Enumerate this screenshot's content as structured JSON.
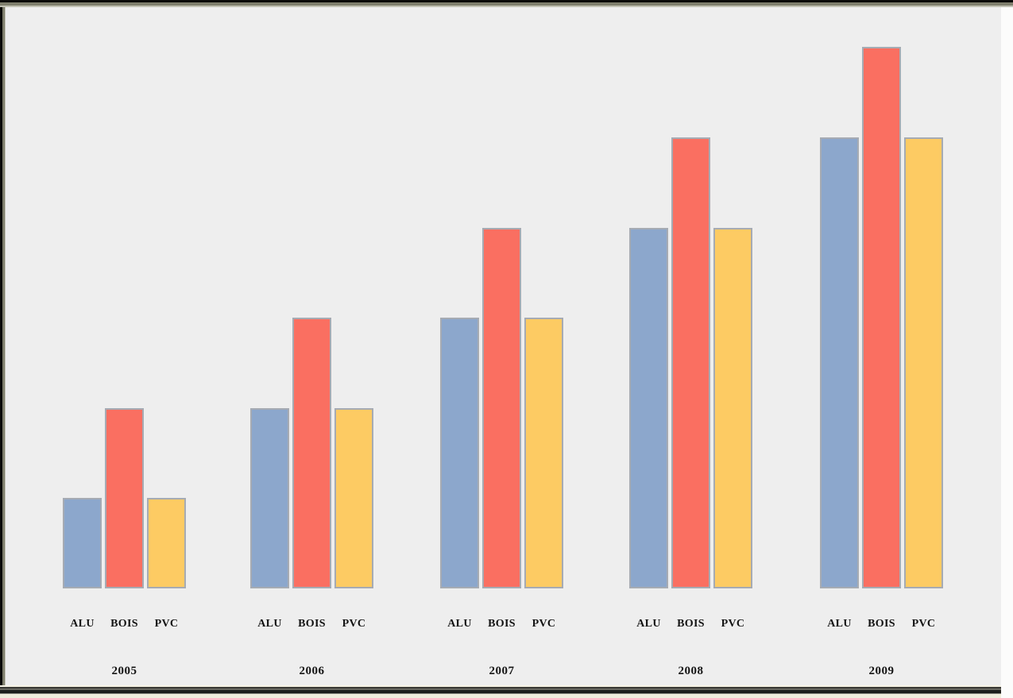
{
  "chart_data": {
    "type": "bar",
    "title": "",
    "xlabel": "",
    "ylabel": "",
    "categories": [
      "2005",
      "2006",
      "2007",
      "2008",
      "2009"
    ],
    "series": [
      {
        "name": "ALU",
        "color": "#8CA7CC",
        "values": [
          1,
          2,
          3,
          4,
          5
        ]
      },
      {
        "name": "BOIS",
        "color": "#FA6F61",
        "values": [
          2,
          3,
          4,
          5,
          6
        ]
      },
      {
        "name": "PVC",
        "color": "#FDCB63",
        "values": [
          1,
          2,
          3,
          4,
          5
        ]
      }
    ],
    "ylim": [
      0,
      6
    ],
    "grid": false,
    "legend_position": "none",
    "axes_visible": false,
    "bar_border_color": "#A6ABB3",
    "background_color": "#EEEEEE"
  },
  "frame": {
    "top_border_color": "#7F7F6D",
    "outer_border_color": "#0B0B09",
    "bottom_strip_color": "#F1EEDC",
    "right_strip_color": "#FCFCFB"
  }
}
